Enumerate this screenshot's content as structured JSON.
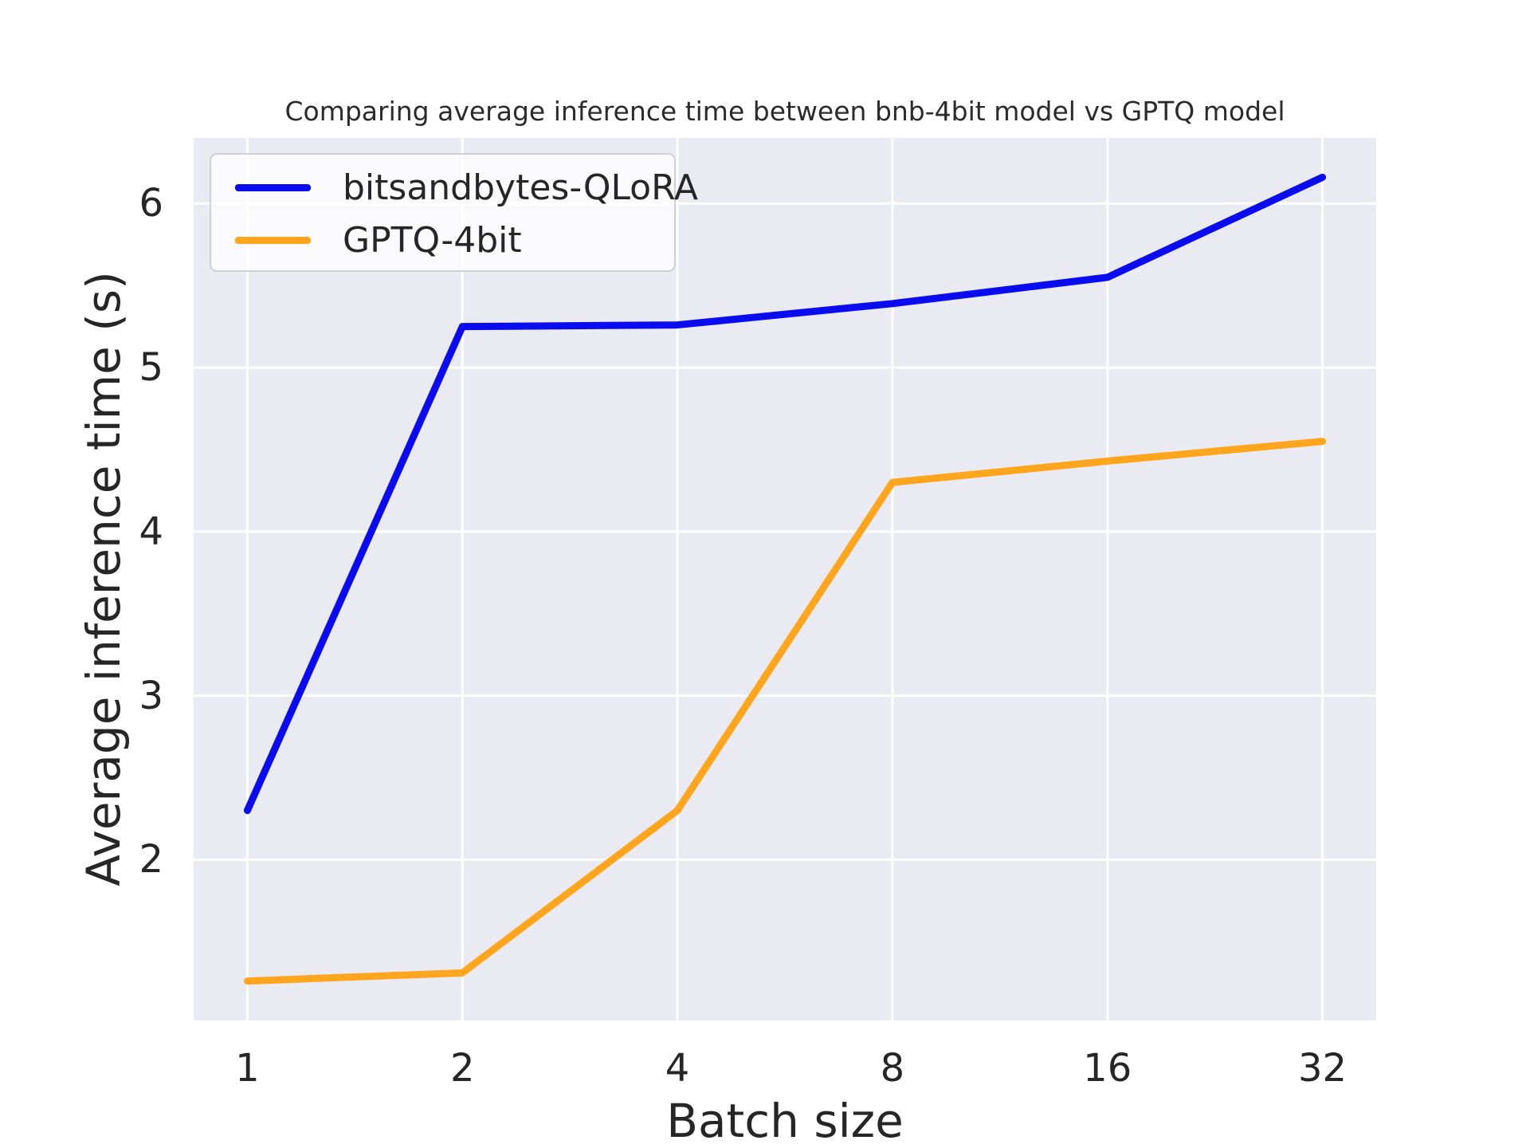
{
  "chart_data": {
    "type": "line",
    "title": "Comparing average inference time between bnb-4bit model vs GPTQ model",
    "xlabel": "Batch size",
    "ylabel": "Average inference time (s)",
    "x": [
      1,
      2,
      4,
      8,
      16,
      32
    ],
    "x_scale": "log2",
    "series": [
      {
        "name": "bitsandbytes-QLoRA",
        "color": "#0b0bf0",
        "values": [
          2.3,
          5.25,
          5.26,
          5.39,
          5.55,
          6.16
        ]
      },
      {
        "name": "GPTQ-4bit",
        "color": "#ffa51e",
        "values": [
          1.26,
          1.31,
          2.3,
          4.3,
          4.43,
          4.55
        ]
      }
    ],
    "yticks": [
      2,
      3,
      4,
      5,
      6
    ],
    "ylim": [
      1.02,
      6.4
    ],
    "xlim_log2": [
      -0.25,
      5.25
    ],
    "grid": true,
    "legend_position": "upper left",
    "plot_bg_color": "#eaeaf2",
    "grid_color": "#ffffff"
  }
}
